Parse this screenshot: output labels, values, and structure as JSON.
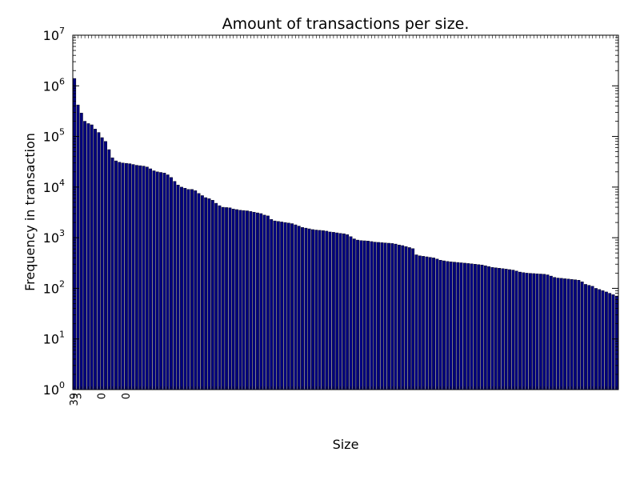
{
  "chart_data": {
    "type": "bar",
    "title": "Amount of transactions per size.",
    "xlabel": "Size",
    "ylabel": "Frequency in transaction",
    "yscale": "log",
    "ylim": [
      1,
      10000000
    ],
    "ytick_values": [
      1,
      10,
      100,
      1000,
      10000,
      100000,
      1000000,
      10000000
    ],
    "ytick_bases": [
      "10",
      "10",
      "10",
      "10",
      "10",
      "10",
      "10",
      "10"
    ],
    "ytick_exponents": [
      "0",
      "1",
      "2",
      "3",
      "4",
      "5",
      "6",
      "7"
    ],
    "bar_color": "#000080",
    "grid": false,
    "categories_note_visible_labels": [
      "39",
      "3",
      "0",
      "0"
    ],
    "values": [
      1400000,
      420000,
      290000,
      200000,
      180000,
      170000,
      140000,
      120000,
      95000,
      80000,
      55000,
      38000,
      33000,
      31000,
      30000,
      29500,
      29000,
      28000,
      27000,
      26500,
      26000,
      25000,
      23000,
      21000,
      20000,
      19500,
      19000,
      17500,
      15500,
      13000,
      11000,
      10000,
      9500,
      9000,
      9000,
      8500,
      7500,
      6800,
      6200,
      5900,
      5500,
      4800,
      4300,
      4000,
      3950,
      3900,
      3700,
      3600,
      3500,
      3450,
      3400,
      3300,
      3200,
      3100,
      3000,
      2800,
      2700,
      2300,
      2150,
      2100,
      2050,
      2000,
      1950,
      1900,
      1800,
      1700,
      1600,
      1550,
      1500,
      1450,
      1420,
      1400,
      1380,
      1350,
      1300,
      1280,
      1250,
      1220,
      1200,
      1150,
      1050,
      950,
      900,
      880,
      870,
      860,
      840,
      820,
      810,
      800,
      790,
      780,
      770,
      750,
      720,
      700,
      670,
      640,
      610,
      460,
      440,
      430,
      420,
      410,
      400,
      380,
      360,
      350,
      340,
      335,
      330,
      325,
      320,
      315,
      310,
      305,
      300,
      295,
      290,
      280,
      270,
      260,
      255,
      250,
      245,
      240,
      235,
      230,
      220,
      210,
      205,
      200,
      198,
      196,
      194,
      192,
      190,
      185,
      175,
      165,
      160,
      158,
      155,
      153,
      150,
      148,
      145,
      135,
      120,
      115,
      110,
      100,
      95,
      90,
      85,
      80,
      75,
      70
    ]
  }
}
